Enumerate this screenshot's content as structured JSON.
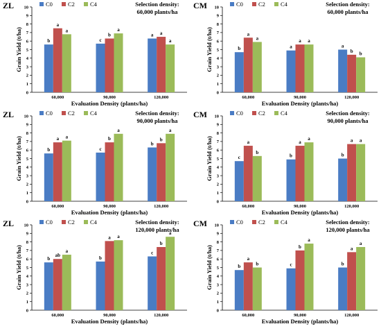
{
  "figure": {
    "series_names": [
      "C0",
      "C2",
      "C4"
    ],
    "colors": [
      "#4a7cc4",
      "#c0504d",
      "#9bbb59"
    ]
  },
  "chart_data": [
    {
      "type": "bar",
      "site": "ZL",
      "selection_label": [
        "Selection density:",
        "60,000 plants/ha"
      ],
      "categories": [
        "60,000",
        "90,000",
        "120,000"
      ],
      "xlabel": "Evaluation Density (plants/ha)",
      "ylabel": "Grain Yield (t/ha)",
      "ylim": [
        0,
        10
      ],
      "yticks": [
        0,
        1,
        2,
        3,
        4,
        5,
        6,
        7,
        8,
        9,
        10
      ],
      "series": [
        {
          "name": "C0",
          "values": [
            5.6,
            5.7,
            6.3
          ],
          "labels": [
            "b",
            "c",
            "a"
          ]
        },
        {
          "name": "C2",
          "values": [
            7.5,
            6.3,
            6.5
          ],
          "labels": [
            "a",
            "b",
            "a"
          ]
        },
        {
          "name": "C4",
          "values": [
            6.8,
            6.9,
            5.6
          ],
          "labels": [
            "a",
            "a",
            "a"
          ]
        }
      ]
    },
    {
      "type": "bar",
      "site": "CM",
      "selection_label": [
        "Selection density:",
        "60,000 plants/ha"
      ],
      "categories": [
        "60,000",
        "90,000",
        "120,000"
      ],
      "xlabel": "Evaluation Density (plants/ha)",
      "ylabel": "Grain Yield (t/ha)",
      "ylim": [
        0,
        10
      ],
      "yticks": [
        0,
        1,
        2,
        3,
        4,
        5,
        6,
        7,
        8,
        9,
        10
      ],
      "series": [
        {
          "name": "C0",
          "values": [
            4.7,
            4.9,
            5.0
          ],
          "labels": [
            "b",
            "a",
            "a"
          ]
        },
        {
          "name": "C2",
          "values": [
            6.4,
            5.6,
            4.4
          ],
          "labels": [
            "a",
            "a",
            "b"
          ]
        },
        {
          "name": "C4",
          "values": [
            5.9,
            5.6,
            4.1
          ],
          "labels": [
            "a",
            "a",
            "b"
          ]
        }
      ]
    },
    {
      "type": "bar",
      "site": "ZL",
      "selection_label": [
        "Selection density:",
        "90,000 plants/ha"
      ],
      "categories": [
        "60,000",
        "90,000",
        "120,000"
      ],
      "xlabel": "Evaluation Density (plants/ha)",
      "ylabel": "Grain Yield (t/ha)",
      "ylim": [
        0,
        10
      ],
      "yticks": [
        0,
        1,
        2,
        3,
        4,
        5,
        6,
        7,
        8,
        9,
        10
      ],
      "series": [
        {
          "name": "C0",
          "values": [
            5.6,
            5.7,
            6.3
          ],
          "labels": [
            "b",
            "c",
            "b"
          ]
        },
        {
          "name": "C2",
          "values": [
            6.9,
            6.9,
            6.8
          ],
          "labels": [
            "a",
            "b",
            "b"
          ]
        },
        {
          "name": "C4",
          "values": [
            7.1,
            7.9,
            7.9
          ],
          "labels": [
            "a",
            "a",
            "a"
          ]
        }
      ]
    },
    {
      "type": "bar",
      "site": "CM",
      "selection_label": [
        "Selection density:",
        "90,000 plants/ha"
      ],
      "categories": [
        "60,000",
        "90,000",
        "120,000"
      ],
      "xlabel": "Evaluation Density (plants/ha)",
      "ylabel": "Grain Yield (t/ha)",
      "ylim": [
        0,
        10
      ],
      "yticks": [
        0,
        1,
        2,
        3,
        4,
        5,
        6,
        7,
        8,
        9,
        10
      ],
      "series": [
        {
          "name": "C0",
          "values": [
            4.7,
            4.9,
            5.0
          ],
          "labels": [
            "c",
            "b",
            "b"
          ]
        },
        {
          "name": "C2",
          "values": [
            6.5,
            6.5,
            6.7
          ],
          "labels": [
            "a",
            "a",
            "a"
          ]
        },
        {
          "name": "C4",
          "values": [
            5.3,
            6.9,
            6.7
          ],
          "labels": [
            "b",
            "a",
            "a"
          ]
        }
      ]
    },
    {
      "type": "bar",
      "site": "ZL",
      "selection_label": [
        "Selection density:",
        "120,000 plants/ha"
      ],
      "categories": [
        "60,000",
        "90,000",
        "120,000"
      ],
      "xlabel": "Evaluation Density (plants/ha)",
      "ylabel": "Grain Yield (t/ha)",
      "ylim": [
        0,
        10
      ],
      "yticks": [
        0,
        1,
        2,
        3,
        4,
        5,
        6,
        7,
        8,
        9,
        10
      ],
      "series": [
        {
          "name": "C0",
          "values": [
            5.6,
            5.7,
            6.3
          ],
          "labels": [
            "b",
            "b",
            "c"
          ]
        },
        {
          "name": "C2",
          "values": [
            6.0,
            8.1,
            7.4
          ],
          "labels": [
            "ab",
            "a",
            "b"
          ]
        },
        {
          "name": "C4",
          "values": [
            6.5,
            8.2,
            8.6
          ],
          "labels": [
            "a",
            "a",
            "a"
          ]
        }
      ]
    },
    {
      "type": "bar",
      "site": "CM",
      "selection_label": [
        "Selection density:",
        "120,000 plants/ha"
      ],
      "categories": [
        "60,000",
        "90,000",
        "120,000"
      ],
      "xlabel": "Evaluation Density (plants/ha)",
      "ylabel": "Grain Yield (t/ha)",
      "ylim": [
        0,
        10
      ],
      "yticks": [
        0,
        1,
        2,
        3,
        4,
        5,
        6,
        7,
        8,
        9,
        10
      ],
      "series": [
        {
          "name": "C0",
          "values": [
            4.7,
            4.9,
            5.0
          ],
          "labels": [
            "b",
            "c",
            "b"
          ]
        },
        {
          "name": "C2",
          "values": [
            5.6,
            7.0,
            6.8
          ],
          "labels": [
            "a",
            "b",
            "a"
          ]
        },
        {
          "name": "C4",
          "values": [
            5.0,
            7.8,
            7.4
          ],
          "labels": [
            "b",
            "a",
            "a"
          ]
        }
      ]
    }
  ]
}
